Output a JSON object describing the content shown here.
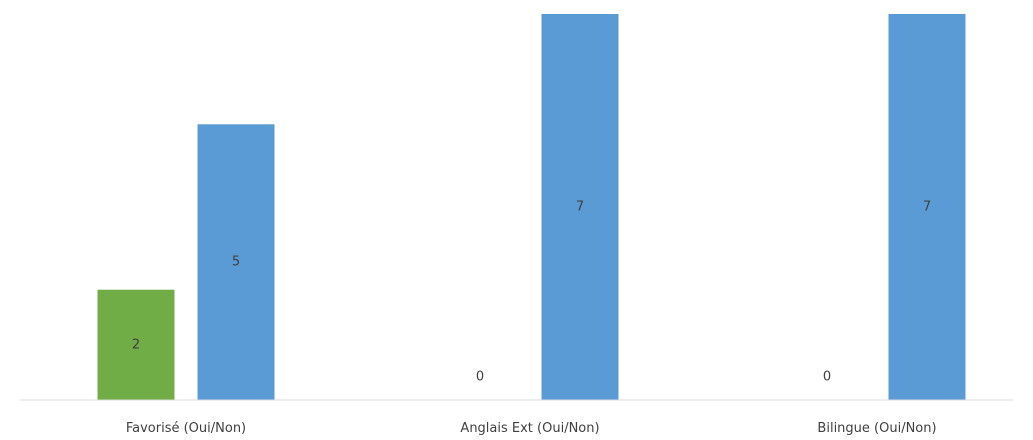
{
  "chart_data": {
    "type": "bar",
    "title": "",
    "xlabel": "",
    "ylabel": "",
    "categories": [
      "Favorisé (Oui/Non)",
      "Anglais Ext (Oui/Non)",
      "Bilingue (Oui/Non)"
    ],
    "series": [
      {
        "color": "#70ad47",
        "values": [
          2,
          0,
          0
        ]
      },
      {
        "color": "#5b9bd5",
        "values": [
          5,
          7,
          7
        ]
      }
    ],
    "ylim": [
      0,
      7
    ],
    "grid": false,
    "legend": "none",
    "data_labels": true
  },
  "colors": {
    "axis": "#d9d9d9",
    "label_text": "#404040",
    "background": "#ffffff"
  }
}
